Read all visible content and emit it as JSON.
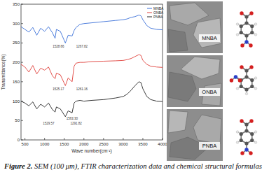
{
  "chart_data": {
    "type": "line",
    "x_label": "Wave number(cm⁻¹)",
    "y_label": "Transmittance(%)",
    "x": [
      400,
      500,
      600,
      700,
      800,
      900,
      1000,
      1100,
      1200,
      1267,
      1300,
      1400,
      1528,
      1600,
      1700,
      1750,
      1800,
      1900,
      2000,
      2200,
      2500,
      2800,
      3000,
      3100,
      3200,
      3300,
      3400,
      3450,
      3500,
      3600,
      3700,
      3850,
      4000
    ],
    "series": [
      {
        "name": "MNBA",
        "color": "#3a6fd8",
        "values": [
          292,
          285,
          278,
          290,
          270,
          288,
          280,
          292,
          276,
          262,
          285,
          280,
          250,
          270,
          268,
          282,
          290,
          298,
          300,
          302,
          305,
          308,
          310,
          312,
          316,
          318,
          322,
          320,
          310,
          295,
          288,
          285,
          284
        ]
      },
      {
        "name": "ONBA",
        "color": "#e0403a",
        "values": [
          195,
          188,
          175,
          192,
          170,
          185,
          180,
          188,
          165,
          158,
          172,
          168,
          140,
          160,
          150,
          190,
          198,
          200,
          200,
          202,
          203,
          204,
          205,
          207,
          210,
          215,
          220,
          218,
          205,
          195,
          190,
          188,
          187
        ]
      },
      {
        "name": "PNBA",
        "color": "#222222",
        "values": [
          100,
          95,
          88,
          98,
          80,
          92,
          85,
          95,
          78,
          72,
          85,
          80,
          60,
          75,
          70,
          95,
          100,
          102,
          100,
          102,
          104,
          108,
          112,
          118,
          128,
          140,
          150,
          148,
          132,
          112,
          104,
          100,
          99
        ]
      }
    ],
    "annotations": [
      {
        "text": "1528.66",
        "x": 1350,
        "y": 238
      },
      {
        "text": "1267.82",
        "x": 1950,
        "y": 238
      },
      {
        "text": "1525.17",
        "x": 1350,
        "y": 128
      },
      {
        "text": "1261.16",
        "x": 1950,
        "y": 128
      },
      {
        "text": "1563.30",
        "x": 1700,
        "y": 52
      },
      {
        "text": "1529.57",
        "x": 1100,
        "y": 40
      },
      {
        "text": "1291.82",
        "x": 1800,
        "y": 40
      }
    ],
    "xlim": [
      400,
      4000
    ],
    "xticks": [
      500,
      1000,
      1500,
      2000,
      2500,
      3000,
      3500,
      4000
    ],
    "ylim": [
      0,
      350
    ],
    "yticks": [
      0,
      50,
      100,
      150,
      200,
      250,
      300,
      350
    ],
    "grid": false,
    "legend": "upper right"
  },
  "panels": [
    {
      "label": "MNBA"
    },
    {
      "label": "ONBA"
    },
    {
      "label": "PNBA"
    }
  ],
  "caption": {
    "label": "Figure 2.",
    "text": "SEM (100 μm), FTIR characterization data and chemical structural formulas"
  }
}
